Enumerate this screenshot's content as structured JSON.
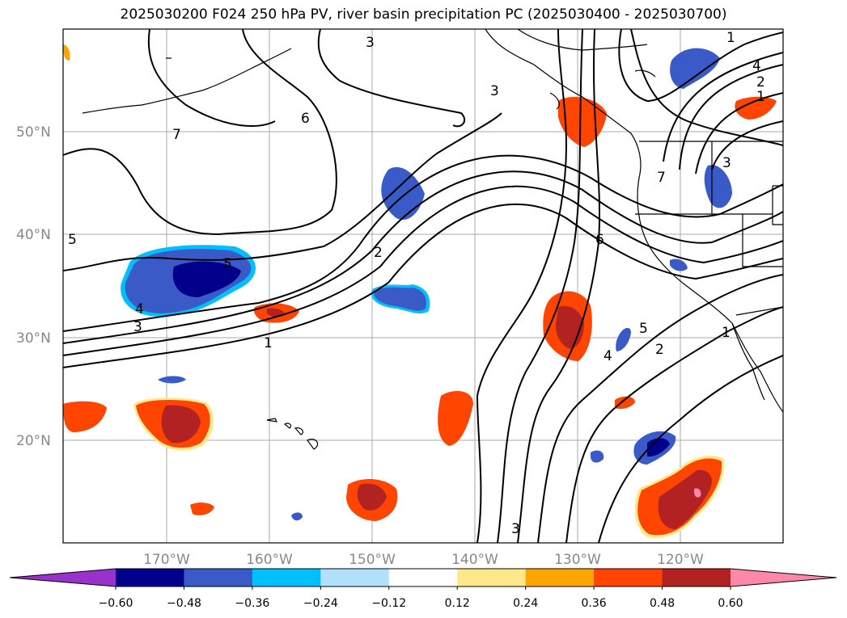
{
  "title": "2025030200 F024 250 hPa PV, river basin precipitation PC (2025030400 - 2025030700)",
  "lat_labels": [
    "50°N",
    "40°N",
    "30°N",
    "20°N"
  ],
  "lon_labels": [
    "170°W",
    "160°W",
    "150°W",
    "140°W",
    "130°W",
    "120°W"
  ],
  "colorbar": {
    "ticks": [
      "−0.60",
      "−0.48",
      "−0.36",
      "−0.24",
      "−0.12",
      "0.12",
      "0.24",
      "0.36",
      "0.48",
      "0.60"
    ],
    "colors": [
      "#9932cc",
      "#00008b",
      "#3a5bc7",
      "#00bfff",
      "#b0e0fa",
      "#ffffff",
      "#ffe88a",
      "#ffa500",
      "#ff4500",
      "#b22222",
      "#ff88aa"
    ]
  },
  "contour_labels": [
    "7",
    "6",
    "5",
    "5",
    "4",
    "3",
    "1",
    "2",
    "3",
    "6",
    "5",
    "4",
    "2",
    "1",
    "1",
    "4",
    "2",
    "1",
    "3",
    "3",
    "7",
    "3"
  ]
}
